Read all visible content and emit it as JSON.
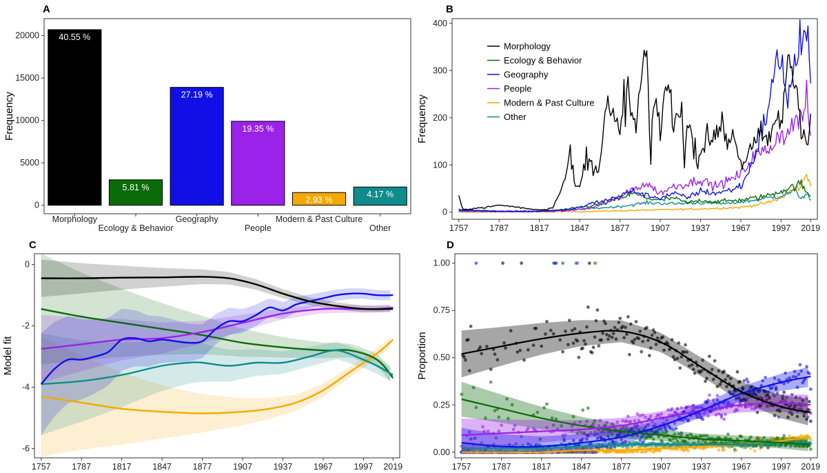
{
  "colors": {
    "Morphology": "#000000",
    "Ecology & Behavior": "#0a6b0a",
    "Geography": "#1010e6",
    "People": "#9b22e8",
    "Modern & Past Culture": "#f5a800",
    "Other": "#108c8c"
  },
  "chart_data": [
    {
      "panel": "A",
      "type": "bar",
      "title": "",
      "xlabel": "",
      "ylabel": "Frequency",
      "categories": [
        "Morphology",
        "Ecology & Behavior",
        "Geography",
        "People",
        "Modern & Past Culture",
        "Other"
      ],
      "values": [
        20700,
        3000,
        13900,
        9900,
        1500,
        2150
      ],
      "value_labels": [
        "40.55 %",
        "5.81 %",
        "27.19 %",
        "19.35 %",
        "2.93 %",
        "4.17 %"
      ],
      "yticks": [
        "0",
        "5000",
        "10000",
        "15000",
        "20000"
      ],
      "ylim": [
        -1000,
        22000
      ]
    },
    {
      "panel": "B",
      "type": "line",
      "xlabel": "",
      "ylabel": "Frequency",
      "xticks": [
        "1757",
        "1787",
        "1817",
        "1847",
        "1877",
        "1907",
        "1937",
        "1967",
        "1997",
        "2019"
      ],
      "yticks": [
        "0",
        "100",
        "200",
        "300",
        "400"
      ],
      "xlim": [
        1752,
        2024
      ],
      "ylim": [
        -15,
        410
      ],
      "legend": [
        "Morphology",
        "Ecology & Behavior",
        "Geography",
        "People",
        "Modern & Past Culture",
        "Other"
      ],
      "series": [
        {
          "name": "Morphology",
          "x": [
            1757,
            1760,
            1767,
            1777,
            1787,
            1797,
            1807,
            1817,
            1822,
            1827,
            1832,
            1837,
            1840,
            1843,
            1847,
            1852,
            1857,
            1862,
            1867,
            1870,
            1874,
            1877,
            1880,
            1884,
            1887,
            1890,
            1894,
            1897,
            1900,
            1903,
            1907,
            1912,
            1917,
            1922,
            1925,
            1928,
            1932,
            1937,
            1942,
            1947,
            1952,
            1957,
            1962,
            1967,
            1972,
            1977,
            1982,
            1987,
            1992,
            1997,
            2002,
            2007,
            2012,
            2016,
            2019
          ],
          "values": [
            35,
            5,
            8,
            10,
            15,
            12,
            8,
            5,
            6,
            10,
            40,
            80,
            130,
            60,
            50,
            120,
            90,
            110,
            230,
            200,
            190,
            150,
            250,
            240,
            180,
            200,
            310,
            330,
            100,
            250,
            170,
            290,
            170,
            250,
            120,
            190,
            130,
            120,
            180,
            140,
            200,
            150,
            170,
            100,
            120,
            140,
            160,
            150,
            190,
            180,
            340,
            280,
            200,
            150,
            190
          ]
        },
        {
          "name": "Ecology & Behavior",
          "x": [
            1757,
            1787,
            1817,
            1837,
            1847,
            1857,
            1867,
            1877,
            1887,
            1897,
            1907,
            1917,
            1927,
            1937,
            1947,
            1957,
            1967,
            1977,
            1987,
            1997,
            2002,
            2007,
            2012,
            2016,
            2019
          ],
          "values": [
            5,
            2,
            2,
            6,
            10,
            14,
            20,
            30,
            40,
            30,
            25,
            30,
            20,
            25,
            22,
            24,
            26,
            30,
            35,
            45,
            50,
            55,
            60,
            40,
            35
          ]
        },
        {
          "name": "Geography",
          "x": [
            1757,
            1787,
            1817,
            1837,
            1847,
            1857,
            1867,
            1877,
            1887,
            1897,
            1907,
            1917,
            1927,
            1937,
            1947,
            1957,
            1967,
            1972,
            1977,
            1982,
            1987,
            1992,
            1997,
            2002,
            2007,
            2012,
            2016,
            2019
          ],
          "values": [
            5,
            2,
            2,
            5,
            10,
            20,
            25,
            35,
            45,
            35,
            30,
            40,
            30,
            45,
            40,
            45,
            55,
            80,
            120,
            160,
            220,
            290,
            340,
            230,
            310,
            370,
            380,
            270
          ]
        },
        {
          "name": "People",
          "x": [
            1757,
            1787,
            1817,
            1837,
            1847,
            1857,
            1867,
            1877,
            1887,
            1897,
            1907,
            1917,
            1927,
            1937,
            1947,
            1957,
            1967,
            1977,
            1987,
            1997,
            2002,
            2007,
            2012,
            2016,
            2019
          ],
          "values": [
            2,
            1,
            1,
            3,
            6,
            10,
            20,
            30,
            50,
            60,
            40,
            55,
            60,
            70,
            55,
            65,
            80,
            120,
            130,
            170,
            160,
            200,
            190,
            240,
            160
          ]
        },
        {
          "name": "Modern & Past Culture",
          "x": [
            1757,
            1847,
            1877,
            1907,
            1937,
            1967,
            1977,
            1987,
            1997,
            2002,
            2007,
            2012,
            2016,
            2019
          ],
          "values": [
            0,
            1,
            3,
            5,
            7,
            10,
            15,
            20,
            30,
            40,
            50,
            55,
            80,
            60
          ]
        },
        {
          "name": "Other",
          "x": [
            1757,
            1787,
            1817,
            1847,
            1857,
            1877,
            1897,
            1917,
            1937,
            1957,
            1967,
            1977,
            1987,
            1997,
            2002,
            2007,
            2012,
            2016,
            2019
          ],
          "values": [
            4,
            2,
            2,
            6,
            8,
            12,
            20,
            18,
            20,
            18,
            22,
            25,
            30,
            35,
            40,
            45,
            30,
            40,
            25
          ]
        }
      ]
    },
    {
      "panel": "C",
      "type": "line",
      "xlabel": "",
      "ylabel": "Model fit",
      "xticks": [
        "1757",
        "1787",
        "1817",
        "1847",
        "1877",
        "1907",
        "1937",
        "1967",
        "1997",
        "2019"
      ],
      "yticks": [
        "-6",
        "-4",
        "-2",
        "0"
      ],
      "xlim": [
        1752,
        2024
      ],
      "ylim": [
        -6.3,
        0.35
      ],
      "series": [
        {
          "name": "Morphology",
          "x": [
            1757,
            1787,
            1817,
            1847,
            1877,
            1897,
            1917,
            1937,
            1957,
            1977,
            1997,
            2019
          ],
          "values": [
            -0.45,
            -0.45,
            -0.43,
            -0.42,
            -0.4,
            -0.45,
            -0.65,
            -0.95,
            -1.2,
            -1.35,
            -1.45,
            -1.45
          ]
        },
        {
          "name": "Ecology & Behavior",
          "x": [
            1757,
            1787,
            1817,
            1847,
            1877,
            1907,
            1937,
            1967,
            1987,
            2007,
            2019
          ],
          "values": [
            -1.45,
            -1.7,
            -1.9,
            -2.1,
            -2.3,
            -2.55,
            -2.7,
            -2.8,
            -2.8,
            -3.1,
            -3.7
          ]
        },
        {
          "name": "Geography",
          "x": [
            1757,
            1767,
            1777,
            1787,
            1797,
            1807,
            1817,
            1827,
            1837,
            1847,
            1857,
            1867,
            1877,
            1887,
            1897,
            1907,
            1917,
            1927,
            1937,
            1947,
            1957,
            1967,
            1977,
            1987,
            1997,
            2007,
            2019
          ],
          "values": [
            -3.9,
            -3.4,
            -3.1,
            -3.1,
            -3.0,
            -2.85,
            -2.45,
            -2.4,
            -2.5,
            -2.45,
            -2.5,
            -2.55,
            -2.5,
            -2.1,
            -1.85,
            -1.85,
            -1.65,
            -1.4,
            -1.5,
            -1.3,
            -1.2,
            -1.1,
            -1.0,
            -0.95,
            -0.95,
            -1.0,
            -1.0
          ]
        },
        {
          "name": "People",
          "x": [
            1757,
            1787,
            1817,
            1847,
            1877,
            1907,
            1937,
            1967,
            1987,
            2007,
            2019
          ],
          "values": [
            -2.75,
            -2.6,
            -2.45,
            -2.4,
            -2.2,
            -1.9,
            -1.6,
            -1.45,
            -1.45,
            -1.45,
            -1.4
          ]
        },
        {
          "name": "Modern & Past Culture",
          "x": [
            1757,
            1787,
            1817,
            1847,
            1877,
            1907,
            1927,
            1947,
            1967,
            1987,
            2007,
            2019
          ],
          "values": [
            -4.3,
            -4.5,
            -4.7,
            -4.8,
            -4.85,
            -4.8,
            -4.7,
            -4.5,
            -4.1,
            -3.5,
            -2.9,
            -2.45
          ]
        },
        {
          "name": "Other",
          "x": [
            1757,
            1787,
            1817,
            1847,
            1867,
            1877,
            1897,
            1917,
            1937,
            1957,
            1977,
            1997,
            2007,
            2019
          ],
          "values": [
            -3.9,
            -3.8,
            -3.6,
            -3.3,
            -3.2,
            -3.2,
            -3.3,
            -3.2,
            -3.2,
            -3.0,
            -2.8,
            -3.1,
            -3.3,
            -3.6
          ]
        }
      ]
    },
    {
      "panel": "D",
      "type": "scatter",
      "xlabel": "",
      "ylabel": "Proportion",
      "xticks": [
        "1757",
        "1787",
        "1817",
        "1847",
        "1877",
        "1907",
        "1937",
        "1967",
        "1997",
        "2019"
      ],
      "yticks": [
        "0.00",
        "0.25",
        "0.50",
        "0.75",
        "1.00"
      ],
      "xlim": [
        1752,
        2024
      ],
      "ylim": [
        -0.03,
        1.05
      ],
      "series": [
        {
          "name": "Morphology",
          "x": [
            1757,
            1787,
            1817,
            1847,
            1877,
            1907,
            1937,
            1967,
            1997,
            2019
          ],
          "values": [
            0.52,
            0.56,
            0.6,
            0.63,
            0.64,
            0.58,
            0.45,
            0.32,
            0.24,
            0.21
          ]
        },
        {
          "name": "Ecology & Behavior",
          "x": [
            1757,
            1787,
            1817,
            1847,
            1877,
            1907,
            1937,
            1967,
            1997,
            2019
          ],
          "values": [
            0.28,
            0.23,
            0.18,
            0.14,
            0.11,
            0.09,
            0.07,
            0.06,
            0.05,
            0.04
          ]
        },
        {
          "name": "Geography",
          "x": [
            1757,
            1787,
            1817,
            1847,
            1877,
            1907,
            1937,
            1967,
            1997,
            2019
          ],
          "values": [
            0.05,
            0.03,
            0.03,
            0.05,
            0.08,
            0.14,
            0.22,
            0.31,
            0.37,
            0.4
          ]
        },
        {
          "name": "People",
          "x": [
            1757,
            1787,
            1817,
            1847,
            1877,
            1907,
            1937,
            1967,
            1997,
            2019
          ],
          "values": [
            0.09,
            0.1,
            0.11,
            0.12,
            0.14,
            0.18,
            0.22,
            0.25,
            0.26,
            0.25
          ]
        },
        {
          "name": "Modern & Past Culture",
          "x": [
            1757,
            1787,
            1817,
            1847,
            1877,
            1907,
            1937,
            1967,
            1997,
            2019
          ],
          "values": [
            0.0,
            0.0,
            0.0,
            0.01,
            0.01,
            0.02,
            0.03,
            0.04,
            0.06,
            0.08
          ]
        },
        {
          "name": "Other",
          "x": [
            1757,
            1787,
            1817,
            1847,
            1877,
            1907,
            1937,
            1967,
            1997,
            2019
          ],
          "values": [
            0.02,
            0.02,
            0.02,
            0.03,
            0.04,
            0.04,
            0.04,
            0.04,
            0.05,
            0.05
          ]
        }
      ]
    }
  ]
}
